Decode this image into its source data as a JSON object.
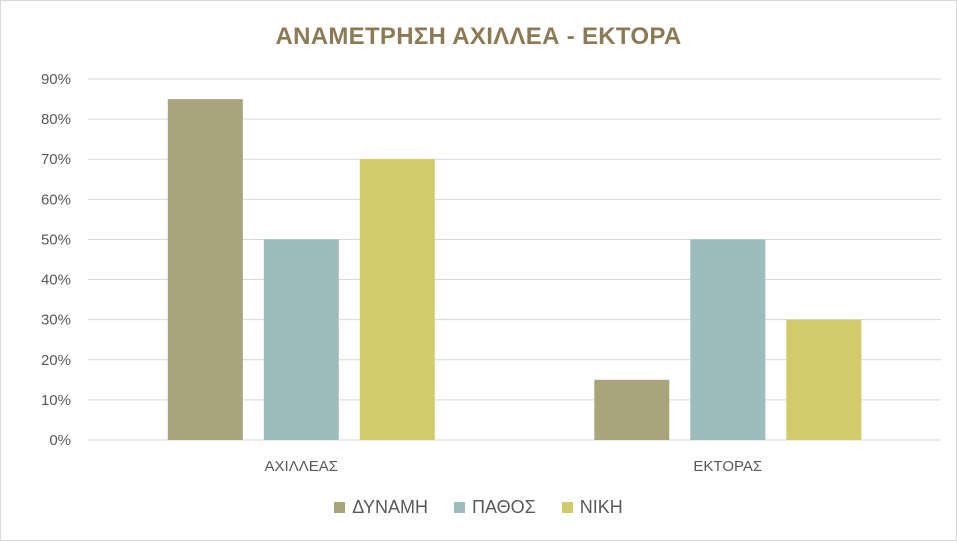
{
  "chart_data": {
    "type": "bar",
    "title": "ΑΝΑΜΕΤΡΗΣΗ ΑΧΙΛΛΕΑ - ΕΚΤΟΡΑ",
    "categories": [
      "ΑΧΙΛΛΕΑΣ",
      "ΕΚΤΟΡΑΣ"
    ],
    "series": [
      {
        "name": "ΔΥΝΑΜΗ",
        "values": [
          85,
          15
        ],
        "color": "#a8a47c"
      },
      {
        "name": "ΠΑΘΟΣ",
        "values": [
          50,
          50
        ],
        "color": "#9dbdbd"
      },
      {
        "name": "ΝΙΚΗ",
        "values": [
          70,
          30
        ],
        "color": "#d1cb6b"
      }
    ],
    "ylim": [
      0,
      90
    ],
    "ytick_step": 10,
    "ytick_labels": [
      "0%",
      "10%",
      "20%",
      "30%",
      "40%",
      "50%",
      "60%",
      "70%",
      "80%",
      "90%"
    ],
    "unit": "%",
    "grid": true,
    "legend_position": "bottom",
    "gridline_color": "#d9d9d9",
    "text_color": "#595959",
    "title_color": "#8c7a55"
  }
}
